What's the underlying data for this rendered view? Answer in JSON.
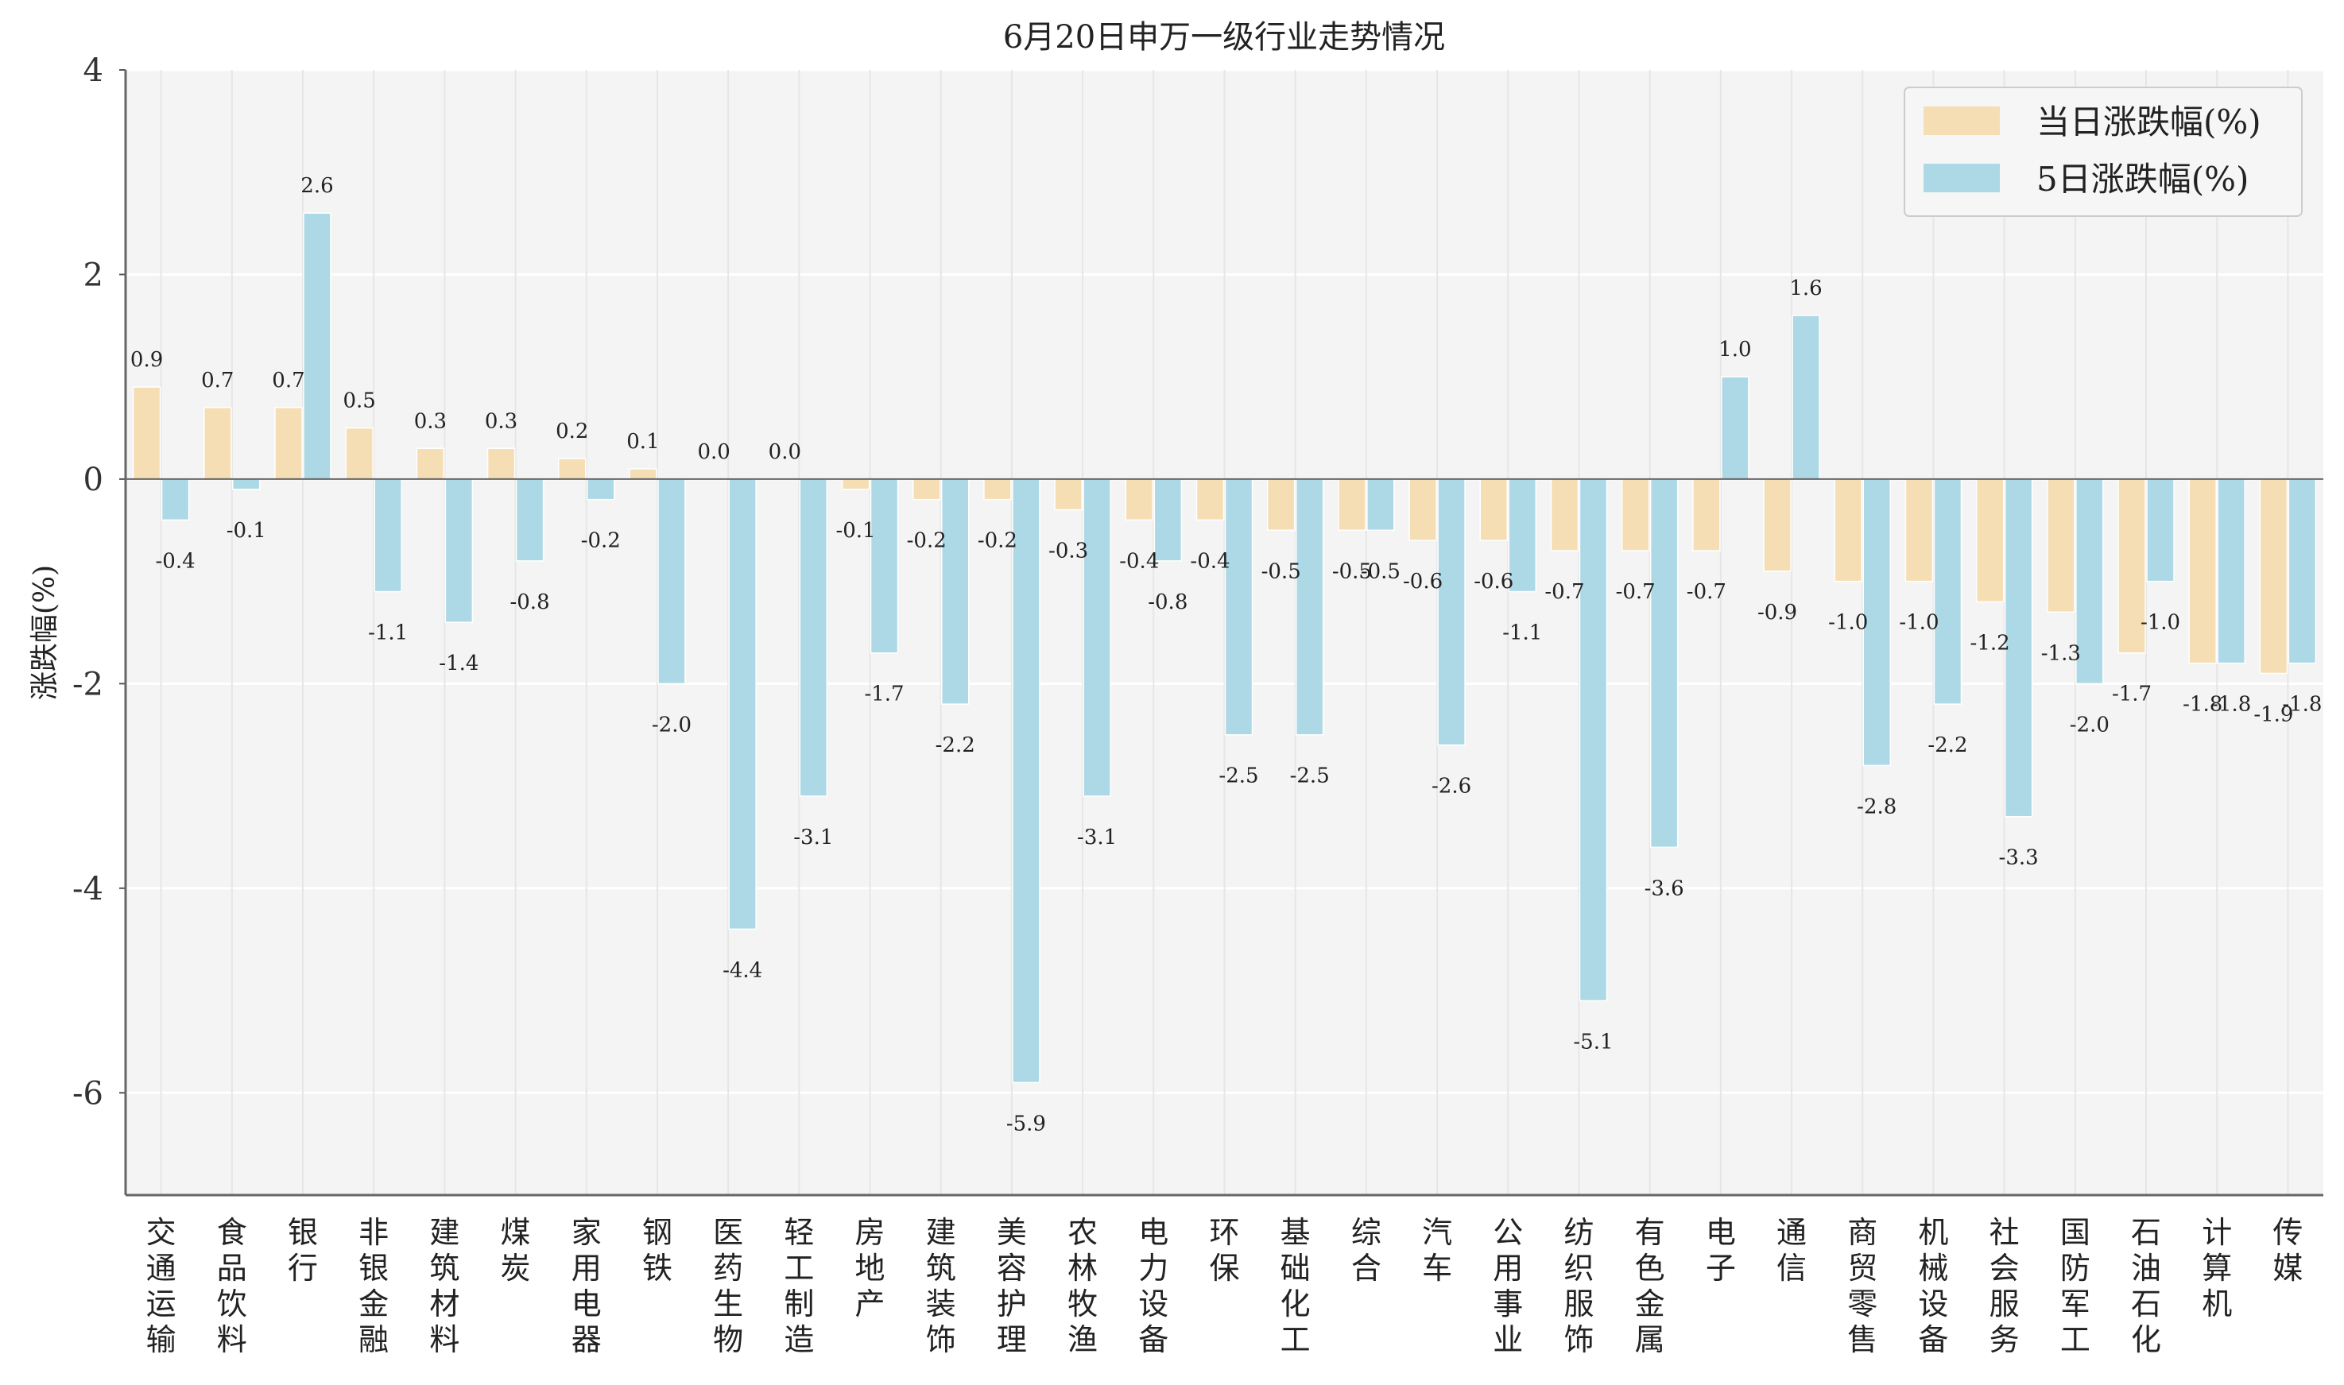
{
  "chart_data": {
    "type": "bar",
    "title": "6月20日申万一级行业走势情况",
    "xlabel": "",
    "ylabel": "涨跌幅(%)",
    "ylim": [
      -7,
      4
    ],
    "yticks": [
      -6,
      -4,
      -2,
      0,
      2,
      4
    ],
    "grid": true,
    "legend_position": "top-right",
    "categories": [
      "交通运输",
      "食品饮料",
      "银行",
      "非银金融",
      "建筑材料",
      "煤炭",
      "家用电器",
      "钢铁",
      "医药生物",
      "轻工制造",
      "房地产",
      "建筑装饰",
      "美容护理",
      "农林牧渔",
      "电力设备",
      "环保",
      "基础化工",
      "综合",
      "汽车",
      "公用事业",
      "纺织服饰",
      "有色金属",
      "电子",
      "通信",
      "商贸零售",
      "机械设备",
      "社会服务",
      "国防军工",
      "石油石化",
      "计算机",
      "传媒"
    ],
    "series": [
      {
        "name": "当日涨跌幅(%)",
        "color": "#f5deb3",
        "values": [
          0.9,
          0.7,
          0.7,
          0.5,
          0.3,
          0.3,
          0.2,
          0.1,
          0.0,
          0.0,
          -0.1,
          -0.2,
          -0.2,
          -0.3,
          -0.4,
          -0.4,
          -0.5,
          -0.5,
          -0.6,
          -0.6,
          -0.7,
          -0.7,
          -0.7,
          -0.9,
          -1.0,
          -1.0,
          -1.2,
          -1.3,
          -1.7,
          -1.8,
          -1.9
        ]
      },
      {
        "name": "5日涨跌幅(%)",
        "color": "#add8e6",
        "values": [
          -0.4,
          -0.1,
          2.6,
          -1.1,
          -1.4,
          -0.8,
          -0.2,
          -2.0,
          -4.4,
          -3.1,
          -1.7,
          -2.2,
          -5.9,
          -3.1,
          -0.8,
          -2.5,
          -2.5,
          -0.5,
          -2.6,
          -1.1,
          -5.1,
          -3.6,
          1.0,
          1.6,
          -2.8,
          -2.2,
          -3.3,
          -2.0,
          -1.0,
          -1.8,
          -1.8
        ]
      }
    ]
  }
}
